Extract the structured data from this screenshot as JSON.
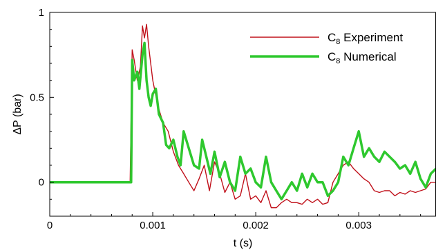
{
  "chart_data": {
    "type": "line",
    "xlabel": "t (s)",
    "ylabel": "ΔP (bar)",
    "xlim": [
      0,
      0.00375
    ],
    "ylim": [
      -0.2,
      1
    ],
    "x_ticks": [
      "0",
      "0.001",
      "0.002",
      "0.003"
    ],
    "x_tick_values": [
      0,
      0.001,
      0.002,
      0.003
    ],
    "y_ticks": [
      "0",
      "0.5",
      "1"
    ],
    "y_tick_values": [
      0,
      0.5,
      1
    ],
    "grid": false,
    "legend_position": "top-right",
    "series": [
      {
        "name": "C8 Experiment",
        "legend_main": "C",
        "legend_sub": "8",
        "legend_rest": " Experiment",
        "color": "#c0101a",
        "x": [
          0,
          0.0001,
          0.0002,
          0.0003,
          0.0004,
          0.0005,
          0.0006,
          0.0007,
          0.00078,
          0.0008,
          0.00082,
          0.00085,
          0.00088,
          0.0009,
          0.00092,
          0.00094,
          0.00096,
          0.00098,
          0.001,
          0.00105,
          0.0011,
          0.00115,
          0.0012,
          0.00125,
          0.0013,
          0.00135,
          0.0014,
          0.00145,
          0.0015,
          0.00155,
          0.0016,
          0.00165,
          0.0017,
          0.00175,
          0.0018,
          0.00185,
          0.0019,
          0.00195,
          0.002,
          0.00205,
          0.0021,
          0.00215,
          0.0022,
          0.00225,
          0.0023,
          0.00235,
          0.0024,
          0.00245,
          0.0025,
          0.00255,
          0.0026,
          0.00265,
          0.0027,
          0.00275,
          0.0028,
          0.00285,
          0.0029,
          0.00295,
          0.003,
          0.00305,
          0.0031,
          0.00315,
          0.0032,
          0.00325,
          0.0033,
          0.00335,
          0.0034,
          0.00345,
          0.0035,
          0.00355,
          0.0036,
          0.00365,
          0.0037,
          0.00375
        ],
        "y": [
          0.0,
          0.0,
          0.0,
          0.0,
          0.0,
          0.0,
          0.0,
          0.0,
          0.0,
          0.78,
          0.72,
          0.6,
          0.68,
          0.92,
          0.85,
          0.93,
          0.8,
          0.7,
          0.6,
          0.45,
          0.35,
          0.3,
          0.18,
          0.1,
          0.05,
          0.0,
          -0.05,
          0.02,
          0.1,
          -0.05,
          0.12,
          0.05,
          -0.06,
          0.0,
          -0.1,
          -0.08,
          0.05,
          -0.1,
          -0.08,
          -0.12,
          -0.05,
          -0.15,
          -0.15,
          -0.12,
          -0.1,
          -0.12,
          -0.12,
          -0.13,
          -0.1,
          -0.12,
          -0.1,
          -0.13,
          -0.12,
          0.0,
          0.05,
          0.1,
          0.12,
          0.08,
          0.05,
          0.02,
          0.0,
          -0.05,
          -0.06,
          -0.05,
          -0.05,
          -0.08,
          -0.06,
          -0.07,
          -0.05,
          -0.06,
          -0.05,
          -0.04,
          0.0,
          0.0
        ]
      },
      {
        "name": "C8 Numerical",
        "legend_main": "C",
        "legend_sub": "8",
        "legend_rest": " Numerical",
        "color": "#2ec82e",
        "x": [
          0,
          0.0001,
          0.0002,
          0.0003,
          0.0004,
          0.0005,
          0.0006,
          0.0007,
          0.00079,
          0.0008,
          0.00082,
          0.00085,
          0.00087,
          0.0009,
          0.00092,
          0.00094,
          0.00096,
          0.00098,
          0.001,
          0.00103,
          0.00106,
          0.0011,
          0.00113,
          0.00116,
          0.0012,
          0.00124,
          0.00127,
          0.0013,
          0.00135,
          0.0014,
          0.00145,
          0.00148,
          0.00152,
          0.00156,
          0.0016,
          0.00165,
          0.0017,
          0.00175,
          0.0018,
          0.00185,
          0.0019,
          0.00195,
          0.002,
          0.00205,
          0.0021,
          0.00215,
          0.0022,
          0.00225,
          0.0023,
          0.00235,
          0.0024,
          0.00245,
          0.0025,
          0.00255,
          0.0026,
          0.00265,
          0.0027,
          0.00275,
          0.0028,
          0.00285,
          0.0029,
          0.00295,
          0.003,
          0.00305,
          0.0031,
          0.00315,
          0.0032,
          0.00325,
          0.0033,
          0.00335,
          0.0034,
          0.00345,
          0.0035,
          0.00355,
          0.0036,
          0.00365,
          0.0037,
          0.00375
        ],
        "y": [
          0.0,
          0.0,
          0.0,
          0.0,
          0.0,
          0.0,
          0.0,
          0.0,
          0.0,
          0.72,
          0.6,
          0.65,
          0.55,
          0.75,
          0.82,
          0.6,
          0.5,
          0.45,
          0.52,
          0.55,
          0.4,
          0.35,
          0.22,
          0.2,
          0.25,
          0.15,
          0.1,
          0.3,
          0.2,
          0.1,
          0.08,
          0.25,
          0.15,
          0.05,
          0.18,
          0.03,
          0.12,
          0.0,
          -0.05,
          0.15,
          0.05,
          0.08,
          0.0,
          -0.03,
          0.15,
          0.0,
          -0.05,
          -0.1,
          -0.05,
          0.0,
          -0.05,
          0.05,
          -0.03,
          0.05,
          0.0,
          0.0,
          -0.08,
          -0.05,
          0.0,
          0.15,
          0.1,
          0.2,
          0.3,
          0.15,
          0.2,
          0.15,
          0.12,
          0.18,
          0.15,
          0.12,
          0.08,
          0.1,
          0.05,
          0.12,
          0.02,
          -0.03,
          0.05,
          0.08
        ]
      }
    ]
  }
}
